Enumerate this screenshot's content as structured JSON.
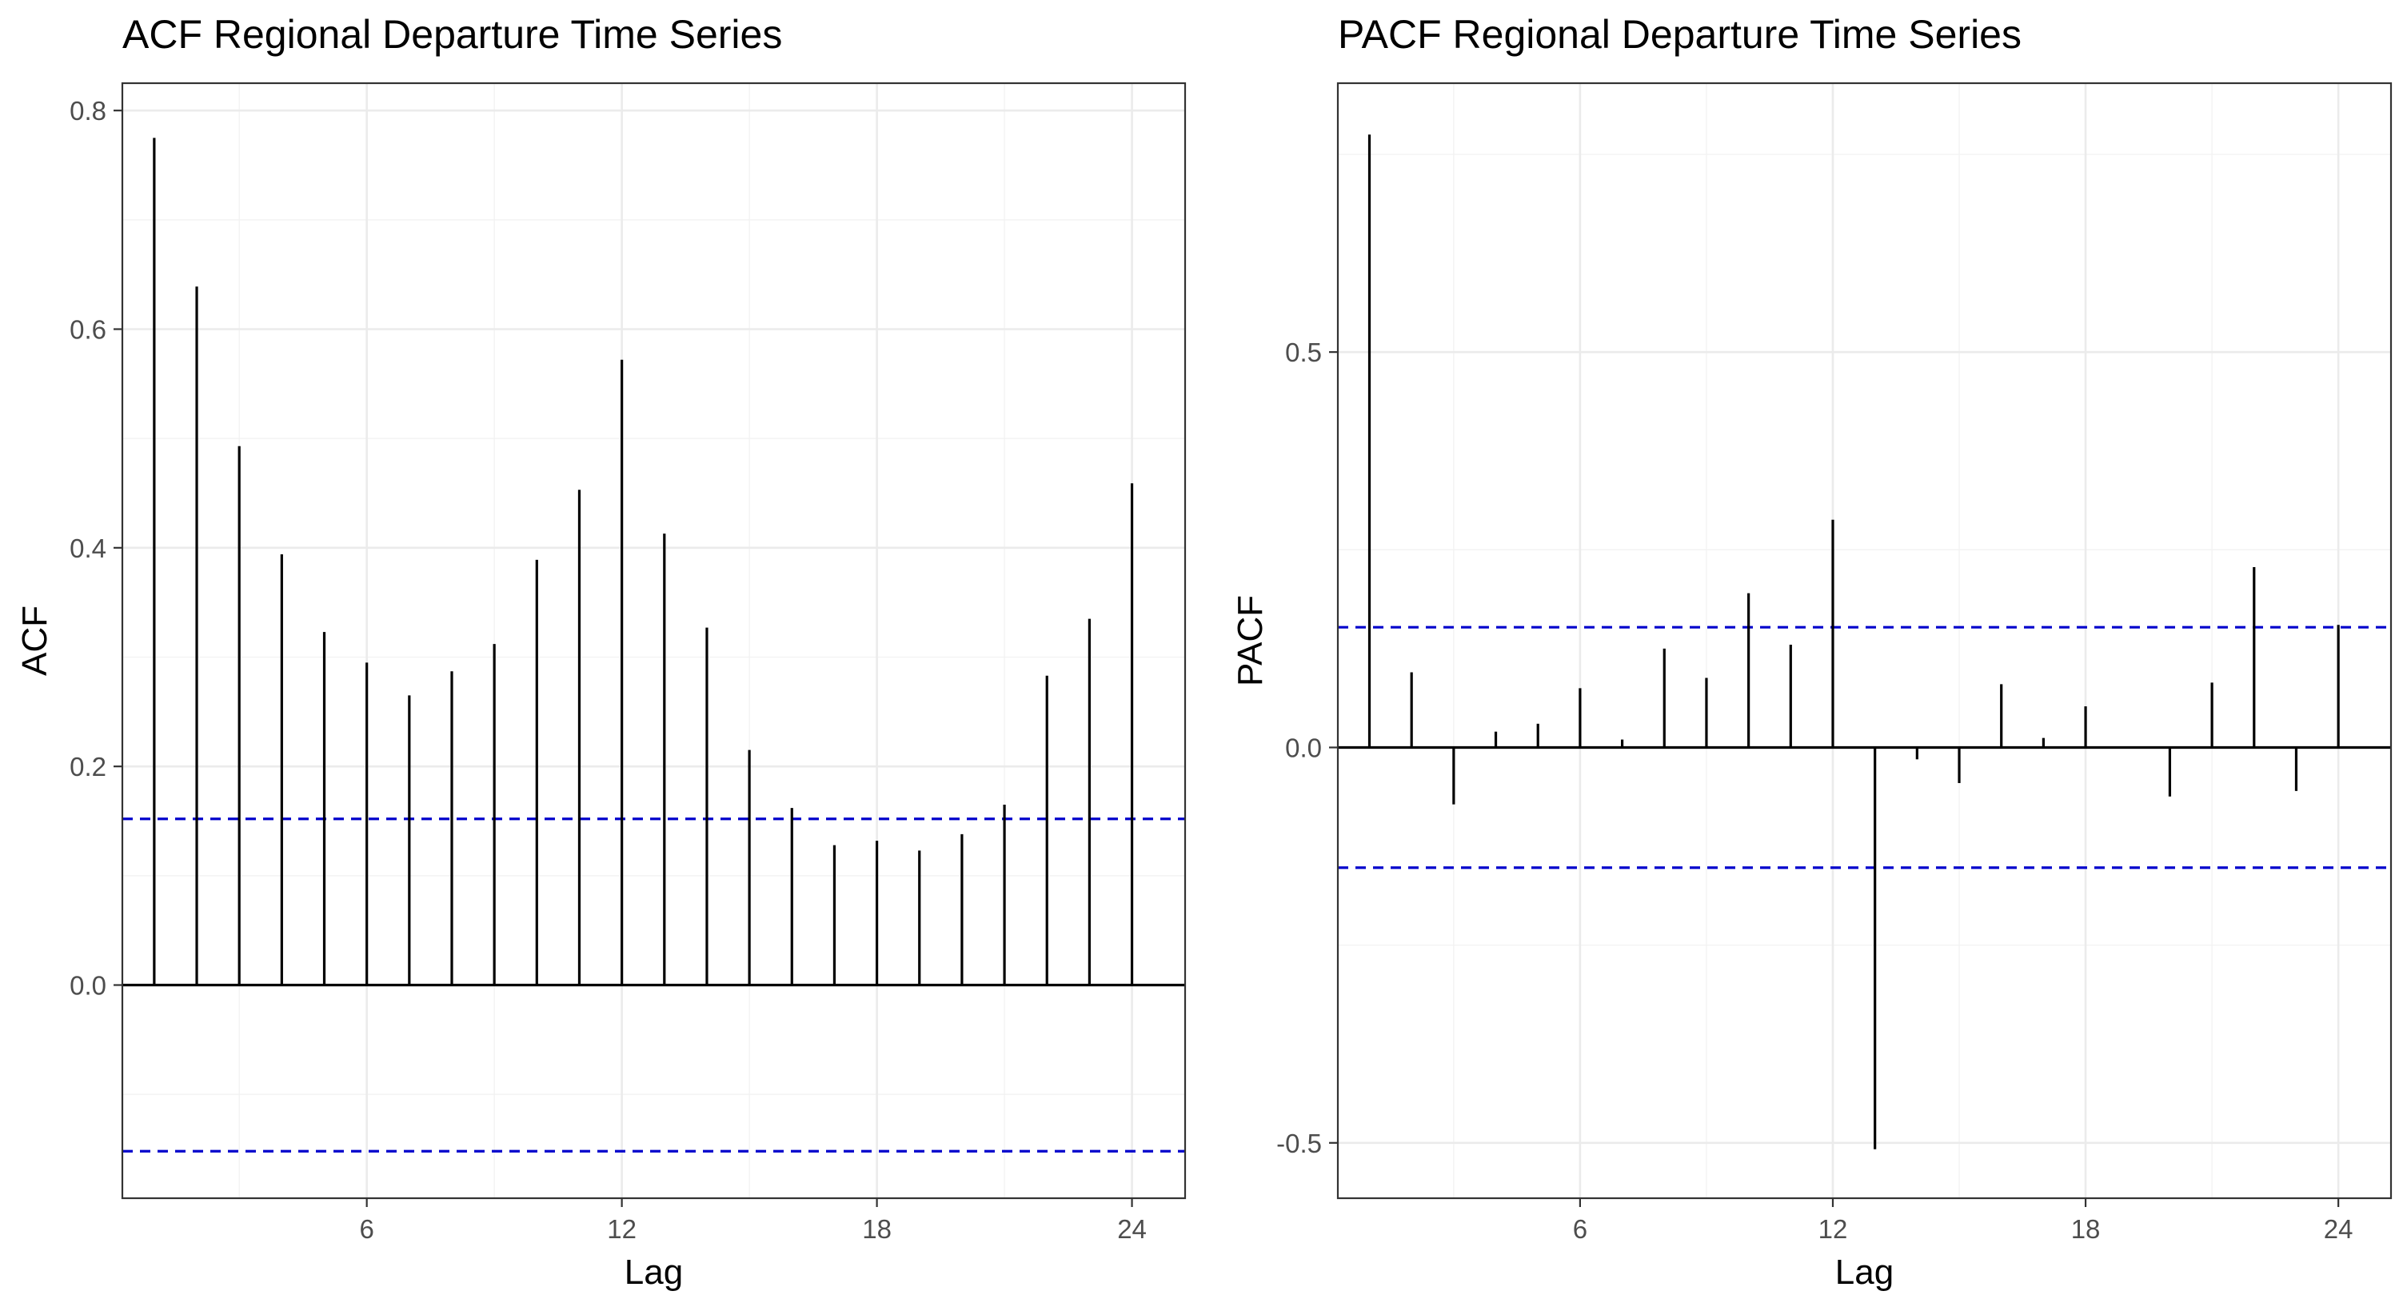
{
  "colors": {
    "background": "#ffffff",
    "panel_border": "#333333",
    "grid": "#ebebeb",
    "spike": "#000000",
    "confidence_band": "#0000cc"
  },
  "chart_data": [
    {
      "type": "bar",
      "title": "ACF Regional Departure Time Series",
      "xlabel": "Lag",
      "ylabel": "ACF",
      "xlim": [
        0.25,
        25.25
      ],
      "ylim": [
        -0.195,
        0.825
      ],
      "x_ticks": [
        6,
        12,
        18,
        24
      ],
      "y_ticks": [
        0.0,
        0.2,
        0.4,
        0.6,
        0.8
      ],
      "y_tick_labels": [
        "0.0",
        "0.2",
        "0.4",
        "0.6",
        "0.8"
      ],
      "y_minor_ticks": [
        -0.1,
        0.1,
        0.3,
        0.5,
        0.7
      ],
      "grid": true,
      "confidence_bounds": [
        0.152,
        -0.152
      ],
      "lags": [
        1,
        2,
        3,
        4,
        5,
        6,
        7,
        8,
        9,
        10,
        11,
        12,
        13,
        14,
        15,
        16,
        17,
        18,
        19,
        20,
        21,
        22,
        23,
        24
      ],
      "values": [
        0.775,
        0.639,
        0.493,
        0.394,
        0.323,
        0.295,
        0.265,
        0.287,
        0.312,
        0.389,
        0.453,
        0.572,
        0.413,
        0.327,
        0.215,
        0.162,
        0.128,
        0.132,
        0.123,
        0.138,
        0.165,
        0.283,
        0.335,
        0.459
      ]
    },
    {
      "type": "bar",
      "title": "PACF Regional Departure Time Series",
      "xlabel": "Lag",
      "ylabel": "PACF",
      "xlim": [
        0.25,
        25.25
      ],
      "ylim": [
        -0.57,
        0.84
      ],
      "x_ticks": [
        6,
        12,
        18,
        24
      ],
      "y_ticks": [
        -0.5,
        0.0,
        0.5
      ],
      "y_tick_labels": [
        "-0.5",
        "0.0",
        "0.5"
      ],
      "y_minor_ticks": [
        -0.25,
        0.25,
        0.75
      ],
      "grid": true,
      "confidence_bounds": [
        0.152,
        -0.152
      ],
      "lags": [
        1,
        2,
        3,
        4,
        5,
        6,
        7,
        8,
        9,
        10,
        11,
        12,
        13,
        14,
        15,
        16,
        17,
        18,
        19,
        20,
        21,
        22,
        23,
        24
      ],
      "values": [
        0.775,
        0.095,
        -0.072,
        0.02,
        0.03,
        0.075,
        0.01,
        0.125,
        0.088,
        0.195,
        0.13,
        0.288,
        -0.508,
        -0.015,
        -0.045,
        0.08,
        0.012,
        0.052,
        0.0,
        -0.062,
        0.082,
        0.228,
        -0.055,
        0.155
      ]
    }
  ]
}
